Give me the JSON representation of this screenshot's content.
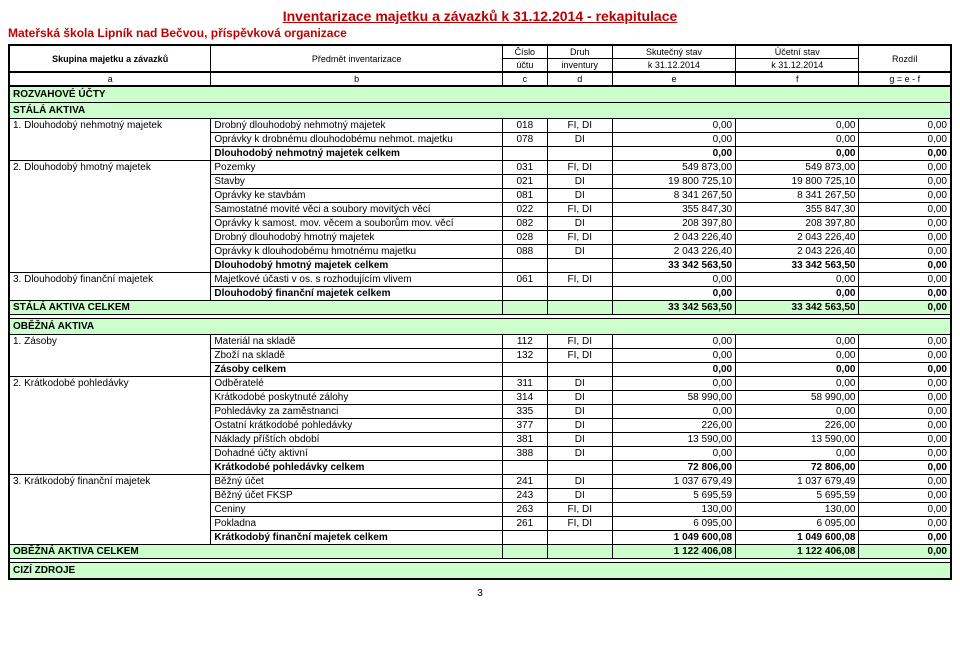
{
  "title": "Inventarizace majetku a závazků k 31.12.2014 - rekapitulace",
  "subtitle": "Mateřská škola Lipník nad Bečvou, příspěvková organizace",
  "header": {
    "col_a": "Skupina majetku a závazků",
    "col_b": "Předmět inventarizace",
    "col_c_top": "Číslo",
    "col_c_bot": "účtu",
    "col_d_top": "Druh",
    "col_d_bot": "inventury",
    "col_e_top": "Skutečný stav",
    "col_e_bot": "k 31.12.2014",
    "col_f_top": "Účetní stav",
    "col_f_bot": "k 31.12.2014",
    "col_g": "Rozdíl",
    "letters": {
      "a": "a",
      "b": "b",
      "c": "c",
      "d": "d",
      "e": "e",
      "f": "f",
      "g": "g = e - f"
    }
  },
  "sections": {
    "rozvahove": "ROZVAHOVÉ ÚČTY",
    "stala_aktiva": "STÁLÁ AKTIVA",
    "stala_aktiva_celkem": "STÁLÁ AKTIVA CELKEM",
    "obezna_aktiva": "OBĚŽNÁ AKTIVA",
    "obezna_aktiva_celkem": "OBĚŽNÁ AKTIVA CELKEM",
    "cizi_zdroje": "CIZÍ ZDROJE"
  },
  "groups": {
    "g1": {
      "label": "1. Dlouhodobý nehmotný majetek",
      "rows": [
        {
          "desc": "Drobný dlouhodobý nehmotný majetek",
          "acct": "018",
          "inv": "FI, DI",
          "e": "0,00",
          "f": "0,00",
          "g": "0,00"
        },
        {
          "desc": "Oprávky k drobnému dlouhodobému nehmot. majetku",
          "acct": "078",
          "inv": "DI",
          "e": "0,00",
          "f": "0,00",
          "g": "0,00"
        },
        {
          "desc": "Dlouhodobý nehmotný majetek celkem",
          "acct": "",
          "inv": "",
          "e": "0,00",
          "f": "0,00",
          "g": "0,00",
          "bold": true
        }
      ]
    },
    "g2": {
      "label": "2. Dlouhodobý hmotný majetek",
      "rows": [
        {
          "desc": "Pozemky",
          "acct": "031",
          "inv": "FI, DI",
          "e": "549 873,00",
          "f": "549 873,00",
          "g": "0,00"
        },
        {
          "desc": "Stavby",
          "acct": "021",
          "inv": "DI",
          "e": "19 800 725,10",
          "f": "19 800 725,10",
          "g": "0,00"
        },
        {
          "desc": "Oprávky ke stavbám",
          "acct": "081",
          "inv": "DI",
          "e": "8 341 267,50",
          "f": "8 341 267,50",
          "g": "0,00"
        },
        {
          "desc": "Samostatné movité věci a soubory movitých věcí",
          "acct": "022",
          "inv": "FI, DI",
          "e": "355 847,30",
          "f": "355 847,30",
          "g": "0,00"
        },
        {
          "desc": "Oprávky k samost. mov. věcem a souborům mov. věcí",
          "acct": "082",
          "inv": "DI",
          "e": "208 397,80",
          "f": "208 397,80",
          "g": "0,00"
        },
        {
          "desc": "Drobný dlouhodobý hmotný majetek",
          "acct": "028",
          "inv": "FI, DI",
          "e": "2 043 226,40",
          "f": "2 043 226,40",
          "g": "0,00"
        },
        {
          "desc": "Oprávky k dlouhodobému hmotnému majetku",
          "acct": "088",
          "inv": "DI",
          "e": "2 043 226,40",
          "f": "2 043 226,40",
          "g": "0,00"
        },
        {
          "desc": "Dlouhodobý hmotný majetek celkem",
          "acct": "",
          "inv": "",
          "e": "33 342 563,50",
          "f": "33 342 563,50",
          "g": "0,00",
          "bold": true
        }
      ]
    },
    "g3": {
      "label": "3. Dlouhodobý finanční majetek",
      "rows": [
        {
          "desc": "Majetkové účasti v os. s rozhodujícím vlivem",
          "acct": "061",
          "inv": "FI, DI",
          "e": "0,00",
          "f": "0,00",
          "g": "0,00"
        },
        {
          "desc": "Dlouhodobý finanční majetek celkem",
          "acct": "",
          "inv": "",
          "e": "0,00",
          "f": "0,00",
          "g": "0,00",
          "bold": true
        }
      ]
    },
    "stala_total": {
      "e": "33 342 563,50",
      "f": "33 342 563,50",
      "g": "0,00"
    },
    "g4": {
      "label": "1. Zásoby",
      "rows": [
        {
          "desc": "Materiál na skladě",
          "acct": "112",
          "inv": "FI, DI",
          "e": "0,00",
          "f": "0,00",
          "g": "0,00"
        },
        {
          "desc": "Zboží na skladě",
          "acct": "132",
          "inv": "FI, DI",
          "e": "0,00",
          "f": "0,00",
          "g": "0,00"
        },
        {
          "desc": "Zásoby celkem",
          "acct": "",
          "inv": "",
          "e": "0,00",
          "f": "0,00",
          "g": "0,00",
          "bold": true
        }
      ]
    },
    "g5": {
      "label": "2. Krátkodobé pohledávky",
      "rows": [
        {
          "desc": "Odběratelé",
          "acct": "311",
          "inv": "DI",
          "e": "0,00",
          "f": "0,00",
          "g": "0,00"
        },
        {
          "desc": "Krátkodobé poskytnuté zálohy",
          "acct": "314",
          "inv": "DI",
          "e": "58 990,00",
          "f": "58 990,00",
          "g": "0,00"
        },
        {
          "desc": "Pohledávky za zaměstnanci",
          "acct": "335",
          "inv": "DI",
          "e": "0,00",
          "f": "0,00",
          "g": "0,00"
        },
        {
          "desc": "Ostatní krátkodobé pohledávky",
          "acct": "377",
          "inv": "DI",
          "e": "226,00",
          "f": "226,00",
          "g": "0,00"
        },
        {
          "desc": "Náklady příštích období",
          "acct": "381",
          "inv": "DI",
          "e": "13 590,00",
          "f": "13 590,00",
          "g": "0,00"
        },
        {
          "desc": "Dohadné účty aktivní",
          "acct": "388",
          "inv": "DI",
          "e": "0,00",
          "f": "0,00",
          "g": "0,00"
        },
        {
          "desc": "Krátkodobé pohledávky celkem",
          "acct": "",
          "inv": "",
          "e": "72 806,00",
          "f": "72 806,00",
          "g": "0,00",
          "bold": true
        }
      ]
    },
    "g6": {
      "label": "3. Krátkodobý finanční majetek",
      "rows": [
        {
          "desc": "Běžný účet",
          "acct": "241",
          "inv": "DI",
          "e": "1 037 679,49",
          "f": "1 037 679,49",
          "g": "0,00"
        },
        {
          "desc": "Běžný účet FKSP",
          "acct": "243",
          "inv": "DI",
          "e": "5 695,59",
          "f": "5 695,59",
          "g": "0,00"
        },
        {
          "desc": "Ceniny",
          "acct": "263",
          "inv": "FI, DI",
          "e": "130,00",
          "f": "130,00",
          "g": "0,00"
        },
        {
          "desc": "Pokladna",
          "acct": "261",
          "inv": "FI, DI",
          "e": "6 095,00",
          "f": "6 095,00",
          "g": "0,00"
        },
        {
          "desc": "Krátkodobý finanční majetek celkem",
          "acct": "",
          "inv": "",
          "e": "1 049 600,08",
          "f": "1 049 600,08",
          "g": "0,00",
          "bold": true
        }
      ]
    },
    "obezna_total": {
      "e": "1 122 406,08",
      "f": "1 122 406,08",
      "g": "0,00"
    }
  },
  "page_num": "3"
}
